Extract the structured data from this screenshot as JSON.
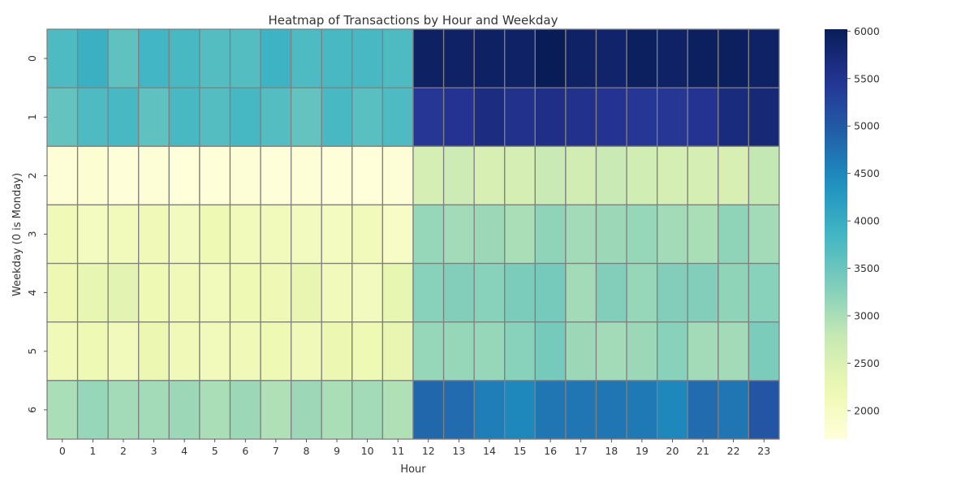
{
  "chart_data": {
    "type": "heatmap",
    "title": "Heatmap of Transactions by Hour and Weekday",
    "xlabel": "Hour",
    "ylabel": "Weekday (0 is Monday)",
    "x": [
      "0",
      "1",
      "2",
      "3",
      "4",
      "5",
      "6",
      "7",
      "8",
      "9",
      "10",
      "11",
      "12",
      "13",
      "14",
      "15",
      "16",
      "17",
      "18",
      "19",
      "20",
      "21",
      "22",
      "23"
    ],
    "y": [
      "0",
      "1",
      "2",
      "3",
      "4",
      "5",
      "6"
    ],
    "colorscale": "YlGnBu",
    "zlim": [
      1700,
      6020
    ],
    "colorbar_ticks": [
      "2000",
      "2500",
      "3000",
      "3500",
      "4000",
      "4500",
      "5000",
      "5500",
      "6000"
    ],
    "grid_line_color": "#808080",
    "values": [
      [
        3750,
        3950,
        3600,
        3850,
        3800,
        3700,
        3700,
        3900,
        3750,
        3800,
        3800,
        3750,
        5920,
        5900,
        5920,
        5900,
        6020,
        5900,
        5850,
        5950,
        5900,
        5950,
        5950,
        5900
      ],
      [
        3550,
        3750,
        3800,
        3600,
        3800,
        3700,
        3820,
        3700,
        3550,
        3800,
        3650,
        3750,
        5450,
        5500,
        5650,
        5550,
        5600,
        5550,
        5500,
        5450,
        5450,
        5500,
        5700,
        5750
      ],
      [
        1750,
        1800,
        1720,
        1750,
        1700,
        1720,
        1750,
        1720,
        1740,
        1720,
        1700,
        1740,
        2600,
        2700,
        2550,
        2600,
        2750,
        2620,
        2750,
        2650,
        2600,
        2600,
        2550,
        2800
      ],
      [
        2150,
        2020,
        2100,
        2150,
        2050,
        2200,
        2100,
        2100,
        2050,
        2040,
        2100,
        1950,
        3150,
        3050,
        3100,
        3000,
        3200,
        3050,
        3100,
        3150,
        3050,
        3000,
        3200,
        3050
      ],
      [
        2220,
        2320,
        2380,
        2200,
        2150,
        2120,
        2200,
        2180,
        2300,
        2100,
        2050,
        2320,
        3250,
        3300,
        3250,
        3350,
        3400,
        3050,
        3300,
        3150,
        3300,
        3300,
        3200,
        3250
      ],
      [
        2150,
        2200,
        2100,
        2250,
        2150,
        2100,
        2150,
        2200,
        2150,
        2250,
        2200,
        2300,
        3150,
        3150,
        3150,
        3250,
        3400,
        3100,
        3050,
        3100,
        3250,
        3050,
        3050,
        3350
      ],
      [
        3000,
        3150,
        3050,
        3050,
        3100,
        3000,
        3100,
        2950,
        3100,
        3000,
        3050,
        2950,
        4850,
        4800,
        4600,
        4500,
        4700,
        4700,
        4700,
        4650,
        4500,
        4800,
        4700,
        5050
      ]
    ]
  }
}
